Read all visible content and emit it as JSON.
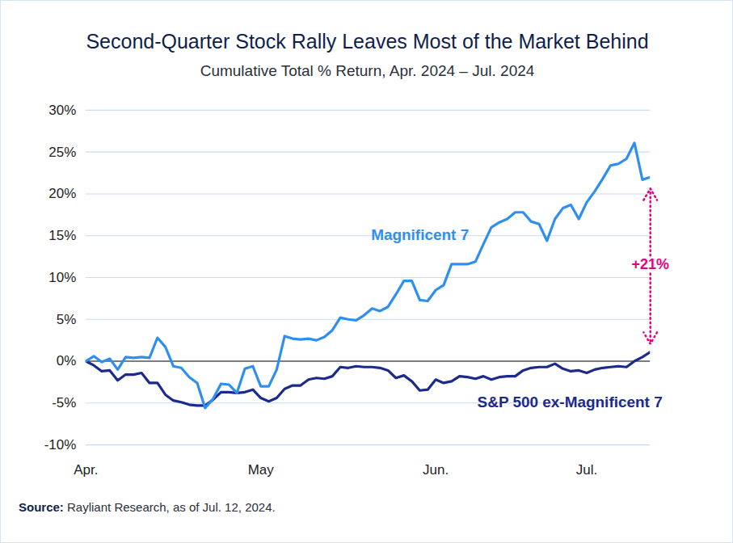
{
  "chart_data": {
    "type": "line",
    "title": "Second-Quarter Stock Rally Leaves Most of the Market Behind",
    "subtitle": "Cumulative Total % Return, Apr. 2024 – Jul. 2024",
    "source_label": "Source:",
    "source": "Rayliant Research, as of Jul. 12, 2024.",
    "categories": [
      "Apr.",
      null,
      null,
      null,
      null,
      null,
      null,
      null,
      null,
      null,
      null,
      null,
      null,
      null,
      null,
      null,
      null,
      null,
      null,
      null,
      null,
      null,
      "May",
      null,
      null,
      null,
      null,
      null,
      null,
      null,
      null,
      null,
      null,
      null,
      null,
      null,
      null,
      null,
      null,
      null,
      null,
      null,
      null,
      null,
      "Jun.",
      null,
      null,
      null,
      null,
      null,
      null,
      null,
      null,
      null,
      null,
      null,
      null,
      null,
      null,
      null,
      null,
      null,
      null,
      "Jul.",
      null,
      null,
      null,
      null,
      null,
      null,
      null,
      null
    ],
    "series": [
      {
        "name": "Magnificent 7",
        "color": "#2f8ff0",
        "values": [
          0,
          0.6,
          -0.1,
          0.3,
          -1.0,
          0.5,
          0.4,
          0.5,
          0.4,
          2.8,
          1.7,
          -0.6,
          -0.8,
          -1.9,
          -2.6,
          -5.6,
          -4.5,
          -2.7,
          -2.8,
          -3.8,
          -0.9,
          -0.6,
          -3.0,
          -3.0,
          -1.0,
          3.0,
          2.7,
          2.6,
          2.7,
          2.5,
          2.9,
          3.7,
          5.2,
          5.0,
          4.9,
          5.5,
          6.3,
          6.0,
          6.5,
          8.0,
          9.6,
          9.6,
          7.3,
          7.2,
          8.5,
          9.1,
          11.6,
          11.6,
          11.6,
          11.9,
          14.0,
          16.0,
          16.6,
          17.0,
          17.8,
          17.8,
          16.7,
          16.4,
          14.4,
          17.0,
          18.3,
          18.7,
          17.0,
          19.0,
          20.3,
          21.8,
          23.4,
          23.6,
          24.2,
          26.1,
          21.7,
          22.0
        ]
      },
      {
        "name": "S&P 500 ex-Magnificent 7",
        "color": "#1b2a8c",
        "values": [
          0,
          -0.5,
          -1.2,
          -1.1,
          -2.3,
          -1.6,
          -1.6,
          -1.4,
          -2.6,
          -2.6,
          -4.0,
          -4.7,
          -4.9,
          -5.2,
          -5.3,
          -5.3,
          -4.6,
          -3.7,
          -3.7,
          -3.8,
          -3.7,
          -3.4,
          -4.4,
          -4.8,
          -4.4,
          -3.3,
          -2.9,
          -2.9,
          -2.2,
          -2.0,
          -2.1,
          -1.8,
          -0.7,
          -0.8,
          -0.6,
          -0.7,
          -0.7,
          -0.8,
          -1.1,
          -2.0,
          -1.7,
          -2.4,
          -3.5,
          -3.4,
          -2.2,
          -2.6,
          -2.4,
          -1.8,
          -1.9,
          -2.1,
          -1.8,
          -2.2,
          -1.9,
          -1.8,
          -1.8,
          -1.1,
          -0.8,
          -0.7,
          -0.7,
          -0.3,
          -0.9,
          -1.2,
          -1.1,
          -1.4,
          -1.0,
          -0.8,
          -0.7,
          -0.6,
          -0.7,
          0.0,
          0.5,
          1.1
        ]
      }
    ],
    "ylim": [
      -10,
      30
    ],
    "yticks": [
      {
        "value": -10,
        "label": "-10%"
      },
      {
        "value": -5,
        "label": "-5%"
      },
      {
        "value": 0,
        "label": "0%"
      },
      {
        "value": 5,
        "label": "5%"
      },
      {
        "value": 10,
        "label": "10%"
      },
      {
        "value": 15,
        "label": "15%"
      },
      {
        "value": 20,
        "label": "20%"
      },
      {
        "value": 25,
        "label": "25%"
      },
      {
        "value": 30,
        "label": "30%"
      }
    ],
    "grid": true,
    "annotation": {
      "text": "+21%",
      "color": "#e6007e"
    }
  }
}
